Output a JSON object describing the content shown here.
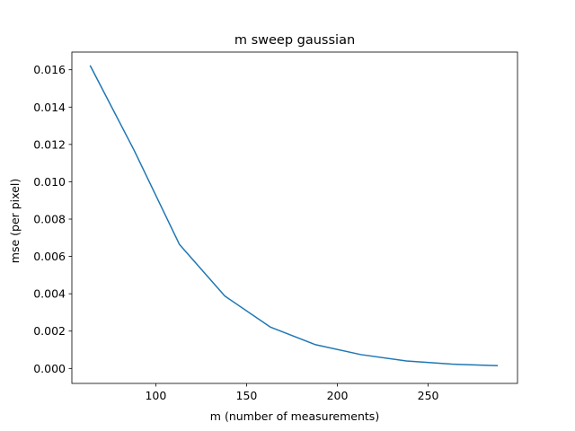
{
  "chart_data": {
    "type": "line",
    "title": "m sweep gaussian",
    "xlabel": "m (number of measurements)",
    "ylabel": "mse (per pixel)",
    "xlim": [
      53.8,
      299.2
    ],
    "ylim": [
      -0.000802,
      0.016947
    ],
    "xticks": [
      100,
      150,
      200,
      250
    ],
    "xtick_labels": [
      "100",
      "150",
      "200",
      "250"
    ],
    "yticks": [
      0.0,
      0.002,
      0.004,
      0.006,
      0.008,
      0.01,
      0.012,
      0.014,
      0.016
    ],
    "ytick_labels": [
      "0.000",
      "0.002",
      "0.004",
      "0.006",
      "0.008",
      "0.010",
      "0.012",
      "0.014",
      "0.016"
    ],
    "grid": false,
    "series": [
      {
        "color": "#1f77b4",
        "x": [
          64,
          88,
          113,
          138,
          163,
          188,
          213,
          238,
          263,
          288
        ],
        "y": [
          0.0162,
          0.0117,
          0.00665,
          0.00388,
          0.00222,
          0.00127,
          0.00074,
          0.0004,
          0.00023,
          0.00015
        ]
      }
    ]
  }
}
